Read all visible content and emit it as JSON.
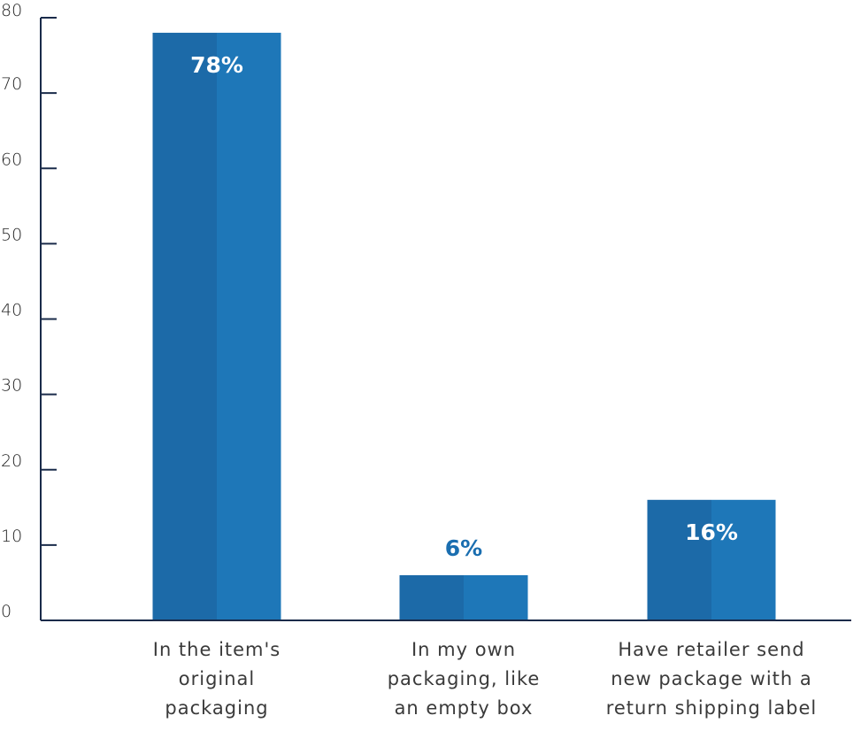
{
  "chart_data": {
    "type": "bar",
    "categories": [
      [
        "In the item's",
        "original",
        "packaging"
      ],
      [
        "In my own",
        "packaging, like",
        "an empty box"
      ],
      [
        "Have retailer send",
        "new package with a",
        "return shipping label"
      ]
    ],
    "values": [
      78,
      6,
      16
    ],
    "data_labels": [
      "78%",
      "6%",
      "16%"
    ],
    "title": "",
    "xlabel": "",
    "ylabel": "",
    "ylim": [
      0,
      80
    ],
    "yticks": [
      0,
      10,
      20,
      30,
      40,
      50,
      60,
      70,
      80
    ],
    "grid": false,
    "legend": "none",
    "colors": {
      "bar_left": "#1c6aa8",
      "bar_right": "#1e77b8",
      "label_inside": "#ffffff",
      "label_outside": "#1a6eb0",
      "axis": "#1a2b4a"
    }
  }
}
